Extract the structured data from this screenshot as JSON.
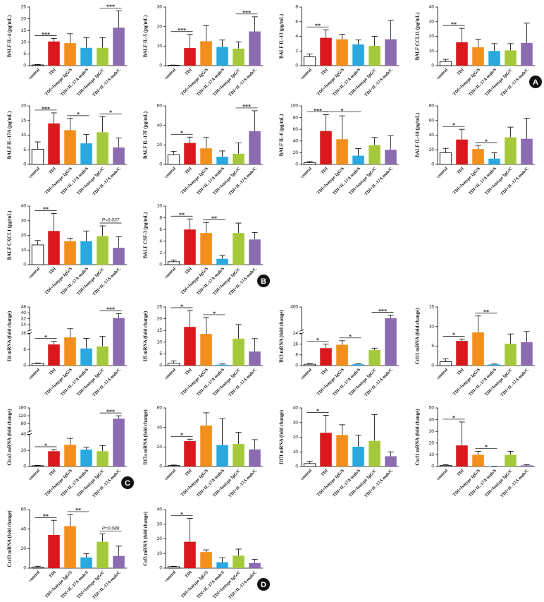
{
  "chart_data": [
    {
      "type": "bar",
      "ylabel": "BALF IL-4 (pg/mL)",
      "categories": [
        "control",
        "TDI",
        "TDI+Isotype IgG/S",
        "TDI+IL-17A mab/S",
        "TDI+Isotype IgG/C",
        "TDI+IL-17A mab/C"
      ],
      "colors": [
        "#ffffff",
        "#d7191c",
        "#f28e1c",
        "#29a9df",
        "#a6c93b",
        "#8b6bb1"
      ],
      "values": [
        0.3,
        10.3,
        9.6,
        7.6,
        7.6,
        16.2
      ],
      "errors": [
        0.2,
        1.3,
        4.0,
        4.3,
        4.3,
        7.2
      ],
      "ylim": [
        0,
        25
      ],
      "yticks": [
        0,
        5,
        10,
        15,
        20,
        25
      ],
      "significance": [
        {
          "between": [
            0,
            1
          ],
          "label": "***"
        },
        {
          "between": [
            4,
            5
          ],
          "label": "***"
        }
      ]
    },
    {
      "type": "bar",
      "ylabel": "BALF IL-5 (pg/mL)",
      "categories": [
        "control",
        "TDI",
        "TDI+Isotype IgG/S",
        "TDI+IL-17A mab/S",
        "TDI+Isotype IgG/C",
        "TDI+IL-17A mab/C"
      ],
      "colors": [
        "#ffffff",
        "#d7191c",
        "#f28e1c",
        "#29a9df",
        "#a6c93b",
        "#8b6bb1"
      ],
      "values": [
        0.2,
        9,
        12.5,
        9.6,
        8.7,
        17.5
      ],
      "errors": [
        0.1,
        7,
        8,
        3.5,
        3.5,
        7.5
      ],
      "ylim": [
        0,
        30
      ],
      "yticks": [
        0,
        10,
        20,
        30
      ],
      "significance": [
        {
          "between": [
            0,
            1
          ],
          "label": "***"
        },
        {
          "between": [
            4,
            5
          ],
          "label": "***"
        }
      ]
    },
    {
      "type": "bar",
      "ylabel": "BALF IL-13 (pg/mL)",
      "categories": [
        "control",
        "TDI",
        "TDI+Isotype IgG/S",
        "TDI+IL-17A mab/S",
        "TDI+Isotype IgG/C",
        "TDI+IL-17A mab/C"
      ],
      "colors": [
        "#ffffff",
        "#d7191c",
        "#f28e1c",
        "#29a9df",
        "#a6c93b",
        "#8b6bb1"
      ],
      "values": [
        1.2,
        3.8,
        3.6,
        2.9,
        2.7,
        3.6
      ],
      "errors": [
        0.4,
        1.1,
        0.7,
        0.6,
        1.3,
        2.6
      ],
      "ylim": [
        0,
        8
      ],
      "yticks": [
        0,
        2,
        4,
        6,
        8
      ],
      "significance": [
        {
          "between": [
            0,
            1
          ],
          "label": "**"
        }
      ]
    },
    {
      "type": "bar",
      "ylabel": "BALF CCL11 (pg/mL)",
      "categories": [
        "control",
        "TDI",
        "TDI+Isotype IgG/S",
        "TDI+IL-17A mab/S",
        "TDI+Isotype IgG/C",
        "TDI+IL-17A mab/C"
      ],
      "colors": [
        "#ffffff",
        "#d7191c",
        "#f28e1c",
        "#29a9df",
        "#a6c93b",
        "#8b6bb1"
      ],
      "values": [
        2.8,
        16,
        12.5,
        10,
        10.4,
        15.5
      ],
      "errors": [
        1.5,
        9.5,
        5.5,
        5,
        4.6,
        13.5
      ],
      "ylim": [
        0,
        40
      ],
      "yticks": [
        0,
        10,
        20,
        30,
        40
      ],
      "significance": [
        {
          "between": [
            0,
            1
          ],
          "label": "**"
        }
      ],
      "panel_label": "A"
    },
    {
      "type": "bar",
      "ylabel": "BALF IL-17A (pg/mL)",
      "categories": [
        "control",
        "TDI",
        "TDI+Isotype IgG/S",
        "TDI+IL-17A mab/S",
        "TDI+Isotype IgG/C",
        "TDI+IL-17A mab/C"
      ],
      "colors": [
        "#ffffff",
        "#d7191c",
        "#f28e1c",
        "#29a9df",
        "#a6c93b",
        "#8b6bb1"
      ],
      "values": [
        5.2,
        14,
        11.7,
        7.2,
        11,
        5.8
      ],
      "errors": [
        2.5,
        3.6,
        4,
        3,
        5.3,
        3.2
      ],
      "ylim": [
        0,
        20
      ],
      "yticks": [
        0,
        5,
        10,
        15,
        20
      ],
      "significance": [
        {
          "between": [
            0,
            1
          ],
          "label": "***"
        },
        {
          "between": [
            2,
            3
          ],
          "label": "*"
        },
        {
          "between": [
            4,
            5
          ],
          "label": "*"
        }
      ]
    },
    {
      "type": "bar",
      "ylabel": "BALF IL-17F (pg/mL)",
      "categories": [
        "control",
        "TDI",
        "TDI+Isotype IgG/S",
        "TDI+IL-17A mab/S",
        "TDI+Isotype IgG/C",
        "TDI+IL-17A mab/C"
      ],
      "colors": [
        "#ffffff",
        "#d7191c",
        "#f28e1c",
        "#29a9df",
        "#a6c93b",
        "#8b6bb1"
      ],
      "values": [
        10,
        22,
        16.5,
        7.8,
        11,
        34
      ],
      "errors": [
        3.5,
        6,
        11,
        6,
        11,
        21
      ],
      "ylim": [
        0,
        60
      ],
      "yticks": [
        0,
        20,
        40,
        60
      ],
      "significance": [
        {
          "between": [
            0,
            1
          ],
          "label": "*"
        },
        {
          "between": [
            4,
            5
          ],
          "label": "***"
        }
      ]
    },
    {
      "type": "bar",
      "ylabel": "BALF IL-6 (pg/mL)",
      "categories": [
        "control",
        "TDI",
        "TDI+Isotype IgG/S",
        "TDI+IL-17A mab/S",
        "TDI+Isotype IgG/C",
        "TDI+IL-17A mab/C"
      ],
      "colors": [
        "#ffffff",
        "#d7191c",
        "#f28e1c",
        "#29a9df",
        "#a6c93b",
        "#8b6bb1"
      ],
      "values": [
        3,
        57,
        43,
        15,
        33,
        25
      ],
      "errors": [
        2,
        28,
        40,
        12,
        13,
        24
      ],
      "ylim": [
        0,
        100
      ],
      "yticks": [
        0,
        20,
        40,
        60,
        80,
        100
      ],
      "significance": [
        {
          "between": [
            0,
            1
          ],
          "label": "***"
        },
        {
          "between": [
            1,
            3
          ],
          "label": "*"
        }
      ]
    },
    {
      "type": "bar",
      "ylabel": "BALF IL-18 (pg/mL)",
      "categories": [
        "control",
        "TDI",
        "TDI+Isotype IgG/S",
        "TDI+IL-17A mab/S",
        "TDI+Isotype IgG/C",
        "TDI+IL-17A mab/C"
      ],
      "colors": [
        "#ffffff",
        "#d7191c",
        "#f28e1c",
        "#29a9df",
        "#a6c93b",
        "#8b6bb1"
      ],
      "values": [
        16,
        34,
        21,
        8,
        37,
        35
      ],
      "errors": [
        6,
        14,
        5,
        8,
        14,
        28
      ],
      "ylim": [
        0,
        80
      ],
      "yticks": [
        0,
        20,
        40,
        60,
        80
      ],
      "significance": [
        {
          "between": [
            0,
            1
          ],
          "label": "*"
        },
        {
          "between": [
            2,
            3
          ],
          "label": "*"
        }
      ]
    },
    {
      "type": "bar",
      "ylabel": "BALF CXCL1 (pg/mL)",
      "categories": [
        "control",
        "TDI",
        "TDI+Isotype IgG/S",
        "TDI+IL-17A mab/S",
        "TDI+Isotype IgG/C",
        "TDI+IL-17A mab/C"
      ],
      "colors": [
        "#ffffff",
        "#d7191c",
        "#f28e1c",
        "#29a9df",
        "#a6c93b",
        "#8b6bb1"
      ],
      "values": [
        13.5,
        23,
        16,
        16,
        19.5,
        11.5
      ],
      "errors": [
        3,
        12,
        2,
        7,
        7,
        7.5
      ],
      "ylim": [
        0,
        40
      ],
      "yticks": [
        0,
        10,
        20,
        30,
        40
      ],
      "significance": [
        {
          "between": [
            0,
            1
          ],
          "label": "**"
        },
        {
          "between": [
            4,
            5
          ],
          "label": "P=0.037"
        }
      ]
    },
    {
      "type": "bar",
      "ylabel": "BALF CSF-3 (pg/mL)",
      "categories": [
        "control",
        "TDI",
        "TDI+Isotype IgG/S",
        "TDI+IL-17A mab/S",
        "TDI+Isotype IgG/C",
        "TDI+IL-17A mab/C"
      ],
      "colors": [
        "#ffffff",
        "#d7191c",
        "#f28e1c",
        "#29a9df",
        "#a6c93b",
        "#8b6bb1"
      ],
      "values": [
        0.5,
        6,
        5.4,
        1,
        5.4,
        4.3
      ],
      "errors": [
        0.3,
        1.8,
        1.8,
        0.6,
        1.7,
        1.2
      ],
      "ylim": [
        0,
        10
      ],
      "yticks": [
        0,
        2,
        4,
        6,
        8,
        10
      ],
      "significance": [
        {
          "between": [
            0,
            1
          ],
          "label": "**"
        },
        {
          "between": [
            2,
            3
          ],
          "label": "**"
        }
      ],
      "panel_label": "B"
    },
    {
      "type": "bar",
      "ylabel": "Il4 mRNA (fold change)",
      "categories": [
        "control",
        "TDI",
        "TDI+Isotype IgG/S",
        "TDI+IL-17A mab/S",
        "TDI+Isotype IgG/C",
        "TDI+IL-17A mab/C"
      ],
      "colors": [
        "#ffffff",
        "#d7191c",
        "#f28e1c",
        "#29a9df",
        "#a6c93b",
        "#8b6bb1"
      ],
      "values": [
        1,
        10.5,
        14,
        8.5,
        9.5,
        33
      ],
      "errors": [
        0.3,
        1.5,
        4.5,
        5,
        5,
        6
      ],
      "ylim": [
        0,
        48
      ],
      "ybreak": 16,
      "yticks": [
        0,
        8,
        16,
        24,
        32,
        40,
        48
      ],
      "significance": [
        {
          "between": [
            0,
            1
          ],
          "label": "*"
        },
        {
          "between": [
            4,
            5
          ],
          "label": "***"
        }
      ]
    },
    {
      "type": "bar",
      "ylabel": "Il5 mRNA (fold change)",
      "categories": [
        "control",
        "TDI",
        "TDI+Isotype IgG/S",
        "TDI+IL-17A mab/S",
        "TDI+Isotype IgG/C",
        "TDI+IL-17A mab/C"
      ],
      "colors": [
        "#ffffff",
        "#d7191c",
        "#f28e1c",
        "#29a9df",
        "#a6c93b",
        "#8b6bb1"
      ],
      "values": [
        1,
        16.5,
        13.5,
        0.4,
        11.5,
        6
      ],
      "errors": [
        1,
        7,
        7,
        0.3,
        6,
        5.5
      ],
      "ylim": [
        0,
        25
      ],
      "yticks": [
        0,
        5,
        10,
        15,
        20,
        25
      ],
      "significance": [
        {
          "between": [
            0,
            1
          ],
          "label": "*"
        },
        {
          "between": [
            2,
            3
          ],
          "label": "*"
        }
      ]
    },
    {
      "type": "bar",
      "ylabel": "Il13 mRNA (fold change)",
      "categories": [
        "control",
        "TDI",
        "TDI+Isotype IgG/S",
        "TDI+IL-17A mab/S",
        "TDI+Isotype IgG/C",
        "TDI+IL-17A mab/C"
      ],
      "colors": [
        "#ffffff",
        "#d7191c",
        "#f28e1c",
        "#29a9df",
        "#a6c93b",
        "#8b6bb1"
      ],
      "values": [
        1,
        13,
        15.5,
        1,
        11.5,
        220
      ],
      "errors": [
        0.5,
        3,
        3,
        0.3,
        1.5,
        50
      ],
      "ylim": [
        0,
        400
      ],
      "ybreak": 24,
      "yticks": [
        0,
        8,
        16,
        24,
        400
      ],
      "significance": [
        {
          "between": [
            0,
            1
          ],
          "label": "*"
        },
        {
          "between": [
            2,
            3
          ],
          "label": "*"
        },
        {
          "between": [
            4,
            5
          ],
          "label": "***"
        }
      ]
    },
    {
      "type": "bar",
      "ylabel": "Ccl11 mRNA (fold change)",
      "categories": [
        "control",
        "TDI",
        "TDI+Isotype IgG/S",
        "TDI+IL-17A mab/S",
        "TDI+Isotype IgG/C",
        "TDI+IL-17A mab/C"
      ],
      "colors": [
        "#ffffff",
        "#d7191c",
        "#f28e1c",
        "#29a9df",
        "#a6c93b",
        "#8b6bb1"
      ],
      "values": [
        1,
        6.3,
        8.5,
        0.3,
        5.6,
        6
      ],
      "errors": [
        0.7,
        0.5,
        4.2,
        0.1,
        2.5,
        2.7
      ],
      "ylim": [
        0,
        15
      ],
      "yticks": [
        0,
        5,
        10,
        15
      ],
      "significance": [
        {
          "between": [
            0,
            1
          ],
          "label": "*"
        },
        {
          "between": [
            2,
            3
          ],
          "label": "**"
        }
      ]
    },
    {
      "type": "bar",
      "ylabel": "Clca3 mRNA (fold change)",
      "categories": [
        "control",
        "TDI",
        "TDI+Isotype IgG/S",
        "TDI+IL-17A mab/S",
        "TDI+Isotype IgG/C",
        "TDI+IL-17A mab/C"
      ],
      "colors": [
        "#ffffff",
        "#d7191c",
        "#f28e1c",
        "#29a9df",
        "#a6c93b",
        "#8b6bb1"
      ],
      "values": [
        1,
        19,
        27,
        21,
        19,
        105
      ],
      "errors": [
        0.5,
        2,
        8,
        3,
        7,
        15
      ],
      "ylim": [
        0,
        160
      ],
      "ybreak": 40,
      "yticks": [
        0,
        20,
        40,
        80,
        120,
        160
      ],
      "significance": [
        {
          "between": [
            0,
            1
          ],
          "label": "*"
        },
        {
          "between": [
            4,
            5
          ],
          "label": "***"
        }
      ],
      "panel_label": "C"
    },
    {
      "type": "bar",
      "ylabel": "Il17a mRNA (fold change)",
      "categories": [
        "control",
        "TDI",
        "TDI+Isotype IgG/S",
        "TDI+IL-17A mab/S",
        "TDI+Isotype IgG/C",
        "TDI+IL-17A mab/C"
      ],
      "colors": [
        "#ffffff",
        "#d7191c",
        "#f28e1c",
        "#29a9df",
        "#a6c93b",
        "#8b6bb1"
      ],
      "values": [
        1,
        26,
        42,
        22,
        23,
        17.5
      ],
      "errors": [
        0.5,
        2,
        13,
        27,
        12,
        10
      ],
      "ylim": [
        0,
        60
      ],
      "yticks": [
        0,
        20,
        40,
        60
      ],
      "significance": [
        {
          "between": [
            0,
            1
          ],
          "label": "*"
        }
      ]
    },
    {
      "type": "bar",
      "ylabel": "Il17f mRNA (fold change)",
      "categories": [
        "control",
        "TDI",
        "TDI+Isotype IgG/S",
        "TDI+IL-17A mab/S",
        "TDI+Isotype IgG/C",
        "TDI+IL-17A mab/C"
      ],
      "colors": [
        "#ffffff",
        "#d7191c",
        "#f28e1c",
        "#29a9df",
        "#a6c93b",
        "#8b6bb1"
      ],
      "values": [
        2,
        23,
        21.5,
        13.5,
        17.5,
        7
      ],
      "errors": [
        1.5,
        12,
        7,
        8,
        18,
        3
      ],
      "ylim": [
        0,
        40
      ],
      "yticks": [
        0,
        10,
        20,
        30,
        40
      ],
      "significance": [
        {
          "between": [
            0,
            1
          ],
          "label": "*"
        }
      ]
    },
    {
      "type": "bar",
      "ylabel": "Cxcl1 mRNA (fold change)",
      "categories": [
        "control",
        "TDI",
        "TDI+Isotype IgG/S",
        "TDI+IL-17A mab/S",
        "TDI+Isotype IgG/C",
        "TDI+IL-17A mab/C"
      ],
      "colors": [
        "#ffffff",
        "#d7191c",
        "#f28e1c",
        "#29a9df",
        "#a6c93b",
        "#8b6bb1"
      ],
      "values": [
        1,
        18,
        10,
        0.2,
        10,
        1
      ],
      "errors": [
        0.5,
        20,
        3,
        0.1,
        3,
        0.5
      ],
      "ylim": [
        0,
        50
      ],
      "yticks": [
        0,
        10,
        20,
        30,
        40,
        50
      ],
      "significance": [
        {
          "between": [
            0,
            1
          ],
          "label": "*"
        },
        {
          "between": [
            2,
            3
          ],
          "label": "*"
        }
      ]
    },
    {
      "type": "bar",
      "ylabel": "Cxcl3 mRNA (fold change)",
      "categories": [
        "control",
        "TDI",
        "TDI+Isotype IgG/S",
        "TDI+IL-17A mab/S",
        "TDI+Isotype IgG/C",
        "TDI+IL-17A mab/C"
      ],
      "colors": [
        "#ffffff",
        "#d7191c",
        "#f28e1c",
        "#29a9df",
        "#a6c93b",
        "#8b6bb1"
      ],
      "values": [
        1,
        34,
        43,
        11,
        27,
        12.5
      ],
      "errors": [
        1,
        15,
        12,
        4,
        8,
        10
      ],
      "ylim": [
        0,
        60
      ],
      "yticks": [
        0,
        20,
        40,
        60
      ],
      "significance": [
        {
          "between": [
            0,
            1
          ],
          "label": "**"
        },
        {
          "between": [
            2,
            3
          ],
          "label": "**"
        },
        {
          "between": [
            4,
            5
          ],
          "label": "P=0.088"
        }
      ]
    },
    {
      "type": "bar",
      "ylabel": "Csf3 mRNA (fold change)",
      "categories": [
        "control",
        "TDI",
        "TDI+Isotype IgG/S",
        "TDI+IL-17A mab/S",
        "TDI+Isotype IgG/C",
        "TDI+IL-17A mab/C"
      ],
      "colors": [
        "#ffffff",
        "#d7191c",
        "#f28e1c",
        "#29a9df",
        "#a6c93b",
        "#8b6bb1"
      ],
      "values": [
        1,
        18,
        11,
        4,
        8.5,
        3.5
      ],
      "errors": [
        0.3,
        16,
        1.5,
        3,
        4.5,
        2.5
      ],
      "ylim": [
        0,
        40
      ],
      "yticks": [
        0,
        10,
        20,
        30,
        40
      ],
      "significance": [
        {
          "between": [
            0,
            1
          ],
          "label": "*"
        }
      ],
      "panel_label": "D"
    }
  ]
}
